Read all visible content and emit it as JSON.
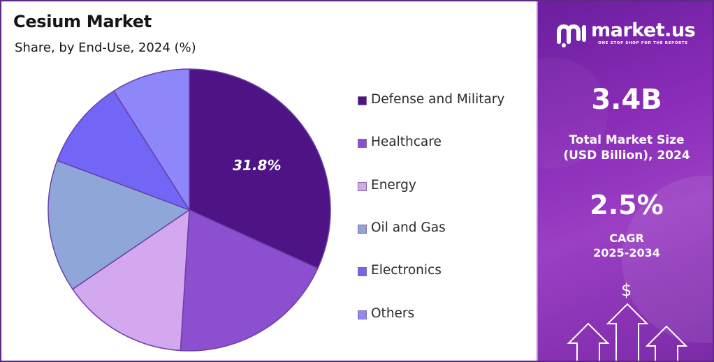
{
  "chart_data": {
    "type": "pie",
    "title": "Cesium Market",
    "subtitle": "Share, by End-Use, 2024 (%)",
    "categories": [
      "Defense and Military",
      "Healthcare",
      "Energy",
      "Oil and Gas",
      "Electronics",
      "Others"
    ],
    "values": [
      31.8,
      19.2,
      14.5,
      15.2,
      10.3,
      9.0
    ],
    "colors": [
      "#4e1486",
      "#8b4fd0",
      "#d4a8ee",
      "#8fa6d8",
      "#7166f5",
      "#8e86fb"
    ],
    "data_labels": [
      {
        "category": "Defense and Military",
        "text": "31.8%"
      }
    ],
    "legend_position": "right"
  },
  "sidebar": {
    "brand": "market.us",
    "tagline": "ONE STOP SHOP FOR THE REPORTS",
    "market_size_value": "3.4B",
    "market_size_label_1": "Total Market Size",
    "market_size_label_2": "(USD Billion), 2024",
    "cagr_value": "2.5%",
    "cagr_label_1": "CAGR",
    "cagr_label_2": "2025-2034",
    "dollar_symbol": "$"
  }
}
